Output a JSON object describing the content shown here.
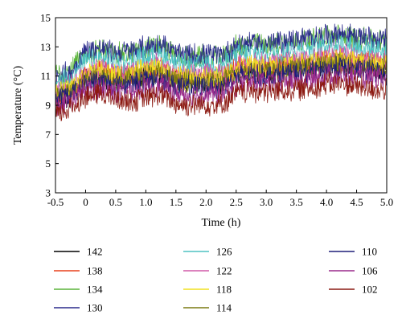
{
  "chart_data": {
    "type": "line",
    "title": "",
    "xlabel": "Time (h)",
    "ylabel": "Temperature (°C)",
    "xlim": [
      -0.5,
      5.0
    ],
    "ylim": [
      3,
      15
    ],
    "xticks": [
      -0.5,
      0,
      0.5,
      1.0,
      1.5,
      2.0,
      2.5,
      3.0,
      3.5,
      4.0,
      4.5,
      5.0
    ],
    "xtick_labels": [
      "-0.5",
      "0",
      "0.5",
      "1.0",
      "1.5",
      "2.0",
      "2.5",
      "3.0",
      "3.5",
      "4.0",
      "4.5",
      "5.0"
    ],
    "yticks": [
      3,
      5,
      7,
      9,
      11,
      13,
      15
    ],
    "ytick_labels": [
      "3",
      "5",
      "7",
      "9",
      "11",
      "13",
      "15"
    ],
    "grid": false,
    "legend_position": "below",
    "x": [
      -0.5,
      -0.25,
      0,
      0.25,
      0.5,
      0.75,
      1.0,
      1.25,
      1.5,
      1.75,
      2.0,
      2.25,
      2.5,
      2.75,
      3.0,
      3.25,
      3.5,
      3.75,
      4.0,
      4.25,
      4.5,
      4.75,
      5.0
    ],
    "series": [
      {
        "name": "142",
        "color": "#000000",
        "values": [
          9.1,
          9.6,
          10.8,
          11.0,
          10.8,
          10.9,
          11.0,
          11.1,
          10.7,
          10.6,
          10.7,
          10.6,
          11.2,
          11.4,
          11.3,
          11.4,
          11.5,
          11.6,
          11.8,
          11.8,
          11.7,
          11.6,
          11.5
        ]
      },
      {
        "name": "138",
        "color": "#e8401c",
        "values": [
          9.3,
          9.9,
          11.1,
          11.3,
          11.1,
          11.2,
          11.3,
          11.4,
          11.0,
          10.9,
          11.0,
          10.9,
          11.5,
          11.7,
          11.6,
          11.7,
          11.8,
          11.9,
          12.1,
          12.1,
          12.0,
          11.9,
          11.8
        ]
      },
      {
        "name": "134",
        "color": "#5ab43a",
        "values": [
          11.2,
          11.4,
          12.6,
          12.8,
          12.5,
          12.6,
          12.9,
          13.1,
          12.4,
          12.2,
          12.4,
          12.3,
          13.0,
          13.2,
          13.1,
          13.2,
          13.4,
          13.5,
          13.7,
          13.8,
          13.6,
          13.5,
          13.3
        ]
      },
      {
        "name": "130",
        "color": "#2a2a8c",
        "values": [
          11.0,
          11.2,
          12.8,
          12.9,
          12.6,
          12.7,
          13.0,
          13.2,
          12.5,
          12.4,
          12.5,
          12.4,
          13.1,
          13.3,
          13.2,
          13.3,
          13.5,
          13.6,
          13.8,
          13.9,
          13.7,
          13.6,
          13.4
        ]
      },
      {
        "name": "126",
        "color": "#4fc2c2",
        "values": [
          10.6,
          10.9,
          12.0,
          12.2,
          11.9,
          12.0,
          12.3,
          12.5,
          11.8,
          11.7,
          11.8,
          11.7,
          12.4,
          12.6,
          12.5,
          12.6,
          12.8,
          12.9,
          13.1,
          13.2,
          13.0,
          12.9,
          12.7
        ]
      },
      {
        "name": "122",
        "color": "#d05aa8",
        "values": [
          10.0,
          10.3,
          11.3,
          11.5,
          11.2,
          11.3,
          11.6,
          11.7,
          11.1,
          11.0,
          11.1,
          11.0,
          11.7,
          11.9,
          11.8,
          11.9,
          12.0,
          12.1,
          12.3,
          12.4,
          12.2,
          12.1,
          12.0
        ]
      },
      {
        "name": "118",
        "color": "#f0e020",
        "values": [
          9.9,
          10.2,
          11.1,
          11.3,
          11.0,
          11.1,
          11.4,
          11.5,
          10.9,
          10.8,
          10.9,
          10.8,
          11.5,
          11.7,
          11.6,
          11.7,
          11.8,
          11.9,
          12.1,
          12.2,
          12.0,
          11.9,
          11.8
        ]
      },
      {
        "name": "114",
        "color": "#7a7a10",
        "values": [
          9.6,
          9.9,
          10.8,
          11.0,
          10.7,
          10.8,
          11.0,
          11.2,
          10.6,
          10.5,
          10.6,
          10.5,
          11.2,
          11.4,
          11.3,
          11.4,
          11.5,
          11.6,
          11.8,
          11.9,
          11.7,
          11.6,
          11.5
        ]
      },
      {
        "name": "110",
        "color": "#1e1e78",
        "values": [
          9.4,
          9.7,
          10.5,
          10.7,
          10.4,
          10.5,
          10.7,
          10.9,
          10.3,
          10.2,
          10.3,
          10.2,
          10.9,
          11.1,
          11.0,
          11.1,
          11.2,
          11.3,
          11.5,
          11.6,
          11.4,
          11.3,
          11.2
        ]
      },
      {
        "name": "106",
        "color": "#9a2a8c",
        "values": [
          9.0,
          9.3,
          10.0,
          10.2,
          9.9,
          10.0,
          10.2,
          10.4,
          9.8,
          9.7,
          9.8,
          9.7,
          10.4,
          10.6,
          10.5,
          10.6,
          10.7,
          10.8,
          11.0,
          11.1,
          10.9,
          10.8,
          10.7
        ]
      },
      {
        "name": "102",
        "color": "#8c1a12",
        "values": [
          8.3,
          8.8,
          9.6,
          9.8,
          9.4,
          9.3,
          9.5,
          9.7,
          9.1,
          9.0,
          9.1,
          9.0,
          9.8,
          10.0,
          9.9,
          10.0,
          10.1,
          10.2,
          10.4,
          10.5,
          10.3,
          10.1,
          10.0
        ]
      }
    ]
  }
}
